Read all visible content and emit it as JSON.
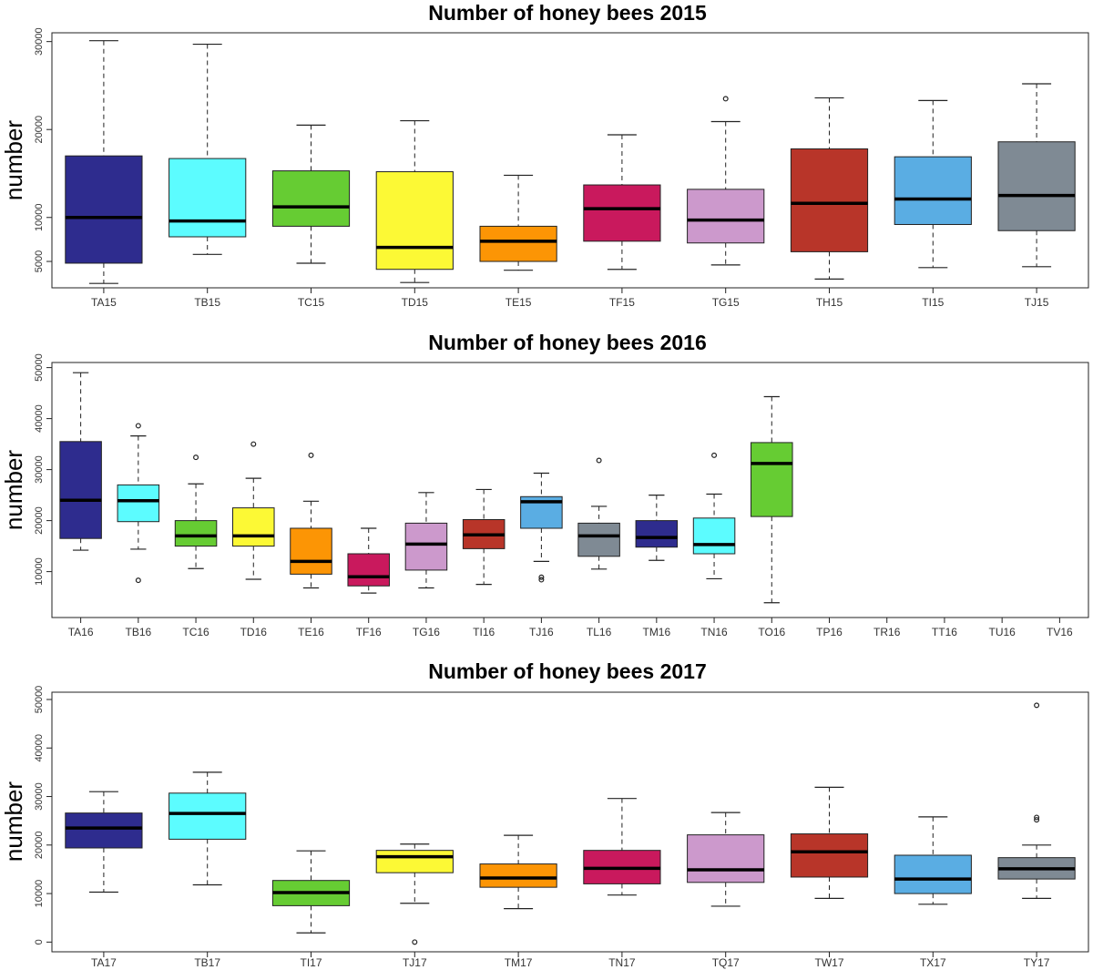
{
  "chart_data": [
    {
      "type": "box",
      "title": "Number of honey bees 2015",
      "ylabel": "number",
      "xlabel": "",
      "ylim": [
        2000,
        31000
      ],
      "yticks": [
        5000,
        10000,
        20000,
        30000
      ],
      "categories": [
        "TA15",
        "TB15",
        "TC15",
        "TD15",
        "TE15",
        "TF15",
        "TG15",
        "TH15",
        "TI15",
        "TJ15"
      ],
      "boxes": [
        {
          "min": 2500,
          "q1": 4800,
          "median": 10000,
          "q3": 17000,
          "max": 30100,
          "outliers": [],
          "color": "#2E2C8E"
        },
        {
          "min": 5800,
          "q1": 7800,
          "median": 9600,
          "q3": 16700,
          "max": 29700,
          "outliers": [],
          "color": "#5CFCFF"
        },
        {
          "min": 4800,
          "q1": 9000,
          "median": 11200,
          "q3": 15300,
          "max": 20500,
          "outliers": [],
          "color": "#66CC33"
        },
        {
          "min": 2600,
          "q1": 4100,
          "median": 6600,
          "q3": 15200,
          "max": 21000,
          "outliers": [],
          "color": "#FCF935"
        },
        {
          "min": 4000,
          "q1": 5000,
          "median": 7300,
          "q3": 9000,
          "max": 14800,
          "outliers": [],
          "color": "#FC9505"
        },
        {
          "min": 4100,
          "q1": 7300,
          "median": 11000,
          "q3": 13700,
          "max": 19400,
          "outliers": [],
          "color": "#C9195D"
        },
        {
          "min": 4600,
          "q1": 7100,
          "median": 9700,
          "q3": 13200,
          "max": 20900,
          "outliers": [
            23500
          ],
          "color": "#CC99CC"
        },
        {
          "min": 3000,
          "q1": 6100,
          "median": 11600,
          "q3": 17800,
          "max": 23600,
          "outliers": [],
          "color": "#B83529"
        },
        {
          "min": 4300,
          "q1": 9200,
          "median": 12100,
          "q3": 16900,
          "max": 23300,
          "outliers": [],
          "color": "#5AADE3"
        },
        {
          "min": 4400,
          "q1": 8500,
          "median": 12500,
          "q3": 18600,
          "max": 25200,
          "outliers": [],
          "color": "#7F8A94"
        }
      ]
    },
    {
      "type": "box",
      "title": "Number of honey bees 2016",
      "ylabel": "number",
      "xlabel": "",
      "ylim": [
        1000,
        51000
      ],
      "yticks": [
        10000,
        20000,
        30000,
        40000,
        50000
      ],
      "categories": [
        "TA16",
        "TB16",
        "TC16",
        "TD16",
        "TE16",
        "TF16",
        "TG16",
        "TI16",
        "TJ16",
        "TL16",
        "TM16",
        "TN16",
        "TO16",
        "TP16",
        "TR16",
        "TT16",
        "TU16",
        "TV16"
      ],
      "boxes": [
        {
          "min": 14200,
          "q1": 16500,
          "median": 24000,
          "q3": 35500,
          "max": 49000,
          "outliers": [],
          "color": "#2E2C8E"
        },
        {
          "min": 14400,
          "q1": 19800,
          "median": 23900,
          "q3": 27000,
          "max": 36600,
          "outliers": [
            38600,
            8300
          ],
          "color": "#5CFCFF"
        },
        {
          "min": 10600,
          "q1": 15000,
          "median": 17000,
          "q3": 20000,
          "max": 27200,
          "outliers": [
            32400
          ],
          "color": "#66CC33"
        },
        {
          "min": 8500,
          "q1": 15000,
          "median": 17000,
          "q3": 22500,
          "max": 28300,
          "outliers": [
            35000
          ],
          "color": "#FCF935"
        },
        {
          "min": 6800,
          "q1": 9500,
          "median": 12000,
          "q3": 18500,
          "max": 23800,
          "outliers": [
            32800
          ],
          "color": "#FC9505"
        },
        {
          "min": 5800,
          "q1": 7200,
          "median": 9000,
          "q3": 13500,
          "max": 18500,
          "outliers": [],
          "color": "#C9195D"
        },
        {
          "min": 6800,
          "q1": 10300,
          "median": 15400,
          "q3": 19500,
          "max": 25500,
          "outliers": [],
          "color": "#CC99CC"
        },
        {
          "min": 7500,
          "q1": 14500,
          "median": 17200,
          "q3": 20200,
          "max": 26100,
          "outliers": [],
          "color": "#B83529"
        },
        {
          "min": 12000,
          "q1": 18500,
          "median": 23700,
          "q3": 24700,
          "max": 29300,
          "outliers": [
            8400,
            8900
          ],
          "color": "#5AADE3"
        },
        {
          "min": 10500,
          "q1": 13000,
          "median": 17000,
          "q3": 19500,
          "max": 22800,
          "outliers": [
            31800
          ],
          "color": "#7F8A94"
        },
        {
          "min": 12200,
          "q1": 14800,
          "median": 16700,
          "q3": 20000,
          "max": 25000,
          "outliers": [],
          "color": "#2E2C8E"
        },
        {
          "min": 8600,
          "q1": 13500,
          "median": 15300,
          "q3": 20500,
          "max": 25200,
          "outliers": [
            32800
          ],
          "color": "#5CFCFF"
        },
        {
          "min": 3900,
          "q1": 20800,
          "median": 31200,
          "q3": 35300,
          "max": 44300,
          "outliers": [],
          "color": "#66CC33"
        },
        null,
        null,
        null,
        null,
        null
      ]
    },
    {
      "type": "box",
      "title": "Number of honey bees 2017",
      "ylabel": "number",
      "xlabel": "",
      "ylim": [
        -2000,
        51500
      ],
      "yticks": [
        0,
        10000,
        20000,
        30000,
        40000,
        50000
      ],
      "categories": [
        "TA17",
        "TB17",
        "TI17",
        "TJ17",
        "TM17",
        "TN17",
        "TQ17",
        "TW17",
        "TX17",
        "TY17"
      ],
      "boxes": [
        {
          "min": 10300,
          "q1": 19400,
          "median": 23500,
          "q3": 26600,
          "max": 31000,
          "outliers": [],
          "color": "#2E2C8E"
        },
        {
          "min": 11800,
          "q1": 21200,
          "median": 26500,
          "q3": 30700,
          "max": 35000,
          "outliers": [],
          "color": "#5CFCFF"
        },
        {
          "min": 1900,
          "q1": 7500,
          "median": 10200,
          "q3": 12700,
          "max": 18800,
          "outliers": [],
          "color": "#66CC33"
        },
        {
          "min": 8000,
          "q1": 14300,
          "median": 17600,
          "q3": 18900,
          "max": 20200,
          "outliers": [
            0
          ],
          "color": "#FCF935"
        },
        {
          "min": 6900,
          "q1": 11300,
          "median": 13200,
          "q3": 16100,
          "max": 22000,
          "outliers": [],
          "color": "#FC9505"
        },
        {
          "min": 9700,
          "q1": 12000,
          "median": 15200,
          "q3": 18900,
          "max": 29600,
          "outliers": [],
          "color": "#C9195D"
        },
        {
          "min": 7400,
          "q1": 12300,
          "median": 14900,
          "q3": 22100,
          "max": 26700,
          "outliers": [],
          "color": "#CC99CC"
        },
        {
          "min": 9000,
          "q1": 13400,
          "median": 18600,
          "q3": 22300,
          "max": 31900,
          "outliers": [],
          "color": "#B83529"
        },
        {
          "min": 7800,
          "q1": 10000,
          "median": 13000,
          "q3": 17900,
          "max": 25800,
          "outliers": [],
          "color": "#5AADE3"
        },
        {
          "min": 9000,
          "q1": 13000,
          "median": 15100,
          "q3": 17400,
          "max": 20000,
          "outliers": [
            25200,
            25700,
            48800
          ],
          "color": "#7F8A94"
        }
      ]
    }
  ]
}
